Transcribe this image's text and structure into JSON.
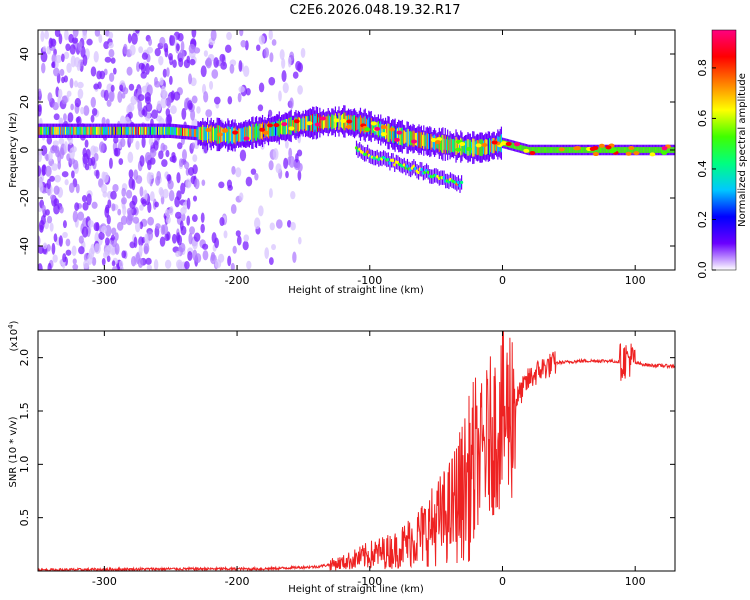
{
  "title": "C2E6.2026.048.19.32.R17",
  "chart_data": [
    {
      "type": "heatmap",
      "xlabel": "Height of straight line (km)",
      "ylabel": "Frequency (Hz)",
      "xlim": [
        -350,
        130
      ],
      "ylim": [
        -50,
        50
      ],
      "xticks": [
        -300,
        -200,
        -100,
        0,
        100
      ],
      "yticks": [
        -40,
        -20,
        0,
        20,
        40
      ],
      "xtick_labels": [
        "-300",
        "-200",
        "-100",
        "0",
        "100"
      ],
      "ytick_labels": [
        "-40",
        "-20",
        "0",
        "20",
        "40"
      ],
      "colorbar": {
        "label": "Normalized spectral amplitude",
        "range": [
          0,
          0.95
        ],
        "ticks": [
          0.0,
          0.2,
          0.4,
          0.6,
          0.8
        ],
        "tick_labels": [
          "0.0",
          "0.2",
          "0.4",
          "0.6",
          "0.8"
        ],
        "colormap": [
          "#ffffff",
          "#6a00ff",
          "#0000ff",
          "#00c8ff",
          "#00ff80",
          "#40ff00",
          "#ffff00",
          "#ff8000",
          "#ff0000",
          "#ff0080"
        ]
      },
      "ridge": {
        "x": [
          -350,
          -300,
          -250,
          -230,
          -200,
          -150,
          -120,
          -100,
          -80,
          -60,
          -40,
          -25,
          -15,
          -5,
          0,
          20,
          60,
          100,
          130
        ],
        "frequency": [
          8,
          8,
          8,
          7,
          6,
          11,
          12,
          10,
          6,
          4,
          2,
          1,
          1,
          2,
          3,
          0,
          0,
          0,
          0
        ]
      }
    },
    {
      "type": "line",
      "xlabel": "Height of straight line (km)",
      "ylabel": "SNR (10 * v/v)",
      "multiplier": "(x10",
      "multiplier_exp": "4",
      "xlim": [
        -350,
        130
      ],
      "ylim": [
        0,
        2.25
      ],
      "xticks": [
        -300,
        -200,
        -100,
        0,
        100
      ],
      "yticks": [
        0.5,
        1.0,
        1.5,
        2.0
      ],
      "xtick_labels": [
        "-300",
        "-200",
        "-100",
        "0",
        "100"
      ],
      "ytick_labels": [
        "0.5",
        "1.0",
        "1.5",
        "2.0"
      ],
      "series": [
        {
          "name": "SNR",
          "color": "#ee2222",
          "x": [
            -350,
            -250,
            -180,
            -140,
            -120,
            -100,
            -80,
            -60,
            -40,
            -30,
            -20,
            -10,
            0,
            10,
            20,
            30,
            40,
            60,
            80,
            90,
            95,
            100,
            110,
            130
          ],
          "values": [
            0.01,
            0.02,
            0.02,
            0.04,
            0.08,
            0.15,
            0.2,
            0.35,
            0.55,
            0.75,
            1.0,
            1.25,
            1.4,
            1.6,
            1.8,
            1.9,
            1.95,
            1.97,
            1.97,
            1.96,
            2.0,
            1.95,
            1.93,
            1.92
          ]
        }
      ]
    }
  ]
}
